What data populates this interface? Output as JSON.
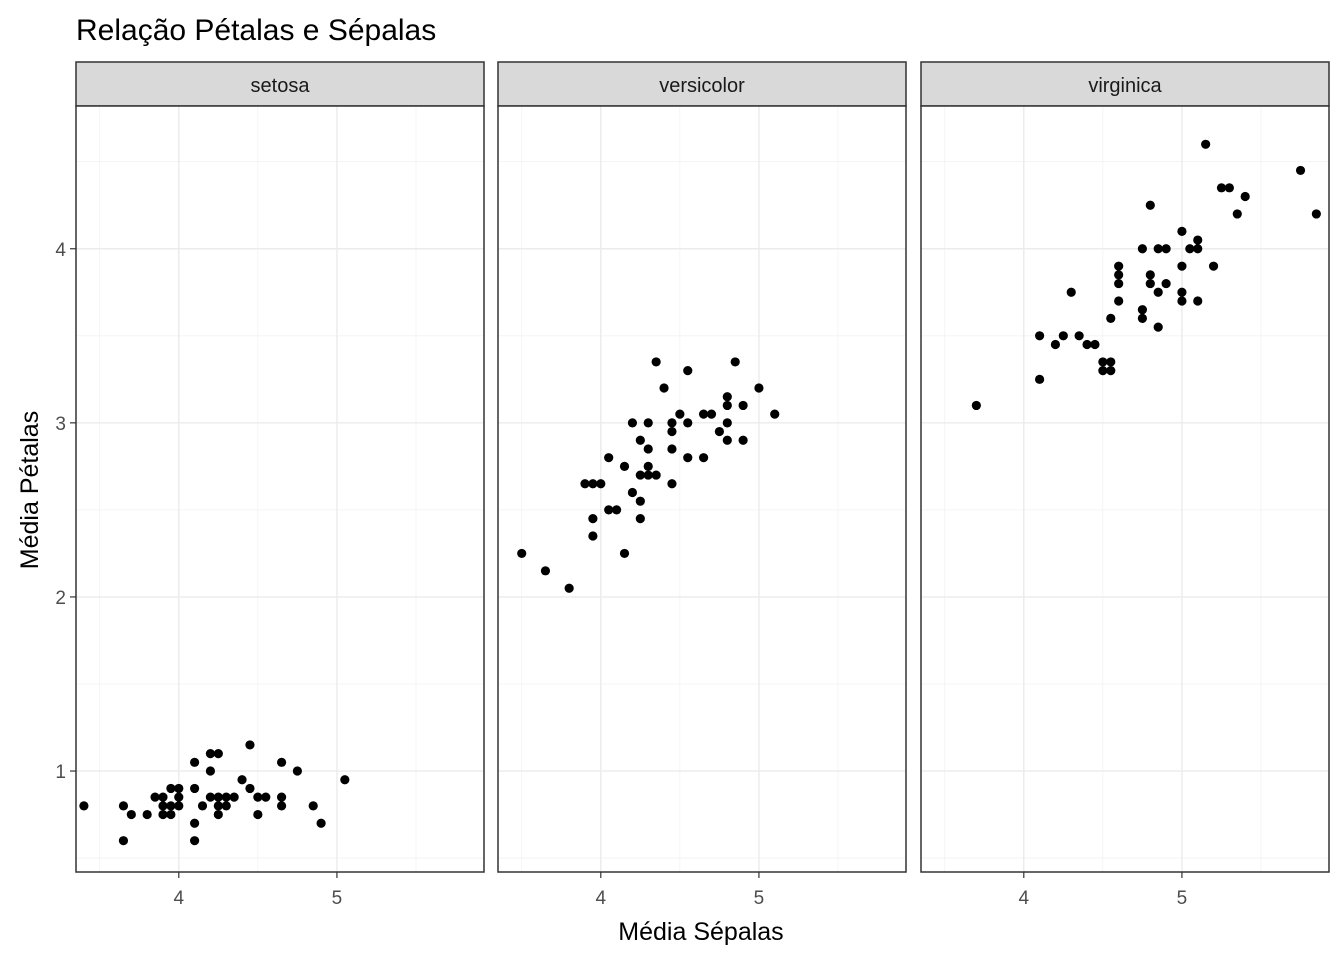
{
  "chart_data": {
    "type": "scatter",
    "title": "Relação Pétalas e Sépalas",
    "xlabel": "Média Sépalas",
    "ylabel": "Média Pétalas",
    "xlim": [
      3.35,
      5.93
    ],
    "ylim": [
      0.42,
      4.82
    ],
    "x_ticks": [
      4,
      5
    ],
    "y_ticks": [
      1,
      2,
      3,
      4
    ],
    "grid": true,
    "facet_by": "species",
    "panels": [
      {
        "label": "setosa",
        "points": [
          [
            3.4,
            0.8
          ],
          [
            3.65,
            0.8
          ],
          [
            3.65,
            0.6
          ],
          [
            3.7,
            0.75
          ],
          [
            3.8,
            0.75
          ],
          [
            3.85,
            0.85
          ],
          [
            3.9,
            0.85
          ],
          [
            3.9,
            0.8
          ],
          [
            3.9,
            0.75
          ],
          [
            3.95,
            0.9
          ],
          [
            3.95,
            0.8
          ],
          [
            3.95,
            0.75
          ],
          [
            4.0,
            0.9
          ],
          [
            4.0,
            0.85
          ],
          [
            4.0,
            0.8
          ],
          [
            4.1,
            1.05
          ],
          [
            4.1,
            0.9
          ],
          [
            4.1,
            0.7
          ],
          [
            4.1,
            0.6
          ],
          [
            4.15,
            0.8
          ],
          [
            4.2,
            1.1
          ],
          [
            4.2,
            1.0
          ],
          [
            4.2,
            0.85
          ],
          [
            4.25,
            1.1
          ],
          [
            4.25,
            0.85
          ],
          [
            4.25,
            0.8
          ],
          [
            4.25,
            0.75
          ],
          [
            4.3,
            0.85
          ],
          [
            4.3,
            0.8
          ],
          [
            4.35,
            0.85
          ],
          [
            4.4,
            0.95
          ],
          [
            4.45,
            1.15
          ],
          [
            4.45,
            0.9
          ],
          [
            4.5,
            0.85
          ],
          [
            4.5,
            0.75
          ],
          [
            4.55,
            0.85
          ],
          [
            4.65,
            1.05
          ],
          [
            4.65,
            0.85
          ],
          [
            4.65,
            0.8
          ],
          [
            4.75,
            1.0
          ],
          [
            4.85,
            0.8
          ],
          [
            4.9,
            0.7
          ],
          [
            5.05,
            0.95
          ]
        ]
      },
      {
        "label": "versicolor",
        "points": [
          [
            3.5,
            2.25
          ],
          [
            3.65,
            2.15
          ],
          [
            3.8,
            2.05
          ],
          [
            3.9,
            2.65
          ],
          [
            3.95,
            2.65
          ],
          [
            3.95,
            2.45
          ],
          [
            3.95,
            2.35
          ],
          [
            4.0,
            2.65
          ],
          [
            4.05,
            2.8
          ],
          [
            4.05,
            2.5
          ],
          [
            4.1,
            2.5
          ],
          [
            4.15,
            2.75
          ],
          [
            4.15,
            2.25
          ],
          [
            4.2,
            3.0
          ],
          [
            4.2,
            2.6
          ],
          [
            4.25,
            2.9
          ],
          [
            4.25,
            2.7
          ],
          [
            4.25,
            2.55
          ],
          [
            4.25,
            2.45
          ],
          [
            4.3,
            3.0
          ],
          [
            4.3,
            2.85
          ],
          [
            4.3,
            2.75
          ],
          [
            4.3,
            2.7
          ],
          [
            4.35,
            3.35
          ],
          [
            4.35,
            2.7
          ],
          [
            4.4,
            3.2
          ],
          [
            4.45,
            3.0
          ],
          [
            4.45,
            2.95
          ],
          [
            4.45,
            2.85
          ],
          [
            4.45,
            2.65
          ],
          [
            4.5,
            3.05
          ],
          [
            4.55,
            3.3
          ],
          [
            4.55,
            3.0
          ],
          [
            4.55,
            2.8
          ],
          [
            4.65,
            3.05
          ],
          [
            4.65,
            2.8
          ],
          [
            4.7,
            3.05
          ],
          [
            4.75,
            2.95
          ],
          [
            4.8,
            3.15
          ],
          [
            4.8,
            3.1
          ],
          [
            4.8,
            3.0
          ],
          [
            4.8,
            2.9
          ],
          [
            4.85,
            3.35
          ],
          [
            4.9,
            3.1
          ],
          [
            4.9,
            2.9
          ],
          [
            5.0,
            3.2
          ],
          [
            5.1,
            3.05
          ]
        ]
      },
      {
        "label": "virginica",
        "points": [
          [
            3.7,
            3.1
          ],
          [
            4.1,
            3.5
          ],
          [
            4.1,
            3.25
          ],
          [
            4.2,
            3.45
          ],
          [
            4.25,
            3.5
          ],
          [
            4.3,
            3.75
          ],
          [
            4.35,
            3.5
          ],
          [
            4.4,
            3.45
          ],
          [
            4.45,
            3.45
          ],
          [
            4.5,
            3.35
          ],
          [
            4.5,
            3.3
          ],
          [
            4.55,
            3.35
          ],
          [
            4.55,
            3.3
          ],
          [
            4.55,
            3.6
          ],
          [
            4.6,
            3.9
          ],
          [
            4.6,
            3.85
          ],
          [
            4.6,
            3.8
          ],
          [
            4.6,
            3.7
          ],
          [
            4.75,
            3.65
          ],
          [
            4.75,
            3.6
          ],
          [
            4.75,
            4.0
          ],
          [
            4.8,
            4.25
          ],
          [
            4.8,
            3.85
          ],
          [
            4.8,
            3.8
          ],
          [
            4.85,
            4.0
          ],
          [
            4.85,
            3.75
          ],
          [
            4.85,
            3.55
          ],
          [
            4.9,
            4.0
          ],
          [
            4.9,
            3.8
          ],
          [
            5.0,
            4.1
          ],
          [
            5.0,
            3.9
          ],
          [
            5.0,
            3.75
          ],
          [
            5.0,
            3.7
          ],
          [
            5.05,
            4.0
          ],
          [
            5.1,
            4.05
          ],
          [
            5.1,
            4.0
          ],
          [
            5.1,
            3.7
          ],
          [
            5.15,
            4.6
          ],
          [
            5.2,
            3.9
          ],
          [
            5.25,
            4.35
          ],
          [
            5.3,
            4.35
          ],
          [
            5.35,
            4.2
          ],
          [
            5.4,
            4.3
          ],
          [
            5.75,
            4.45
          ],
          [
            5.85,
            4.2
          ]
        ]
      }
    ]
  }
}
